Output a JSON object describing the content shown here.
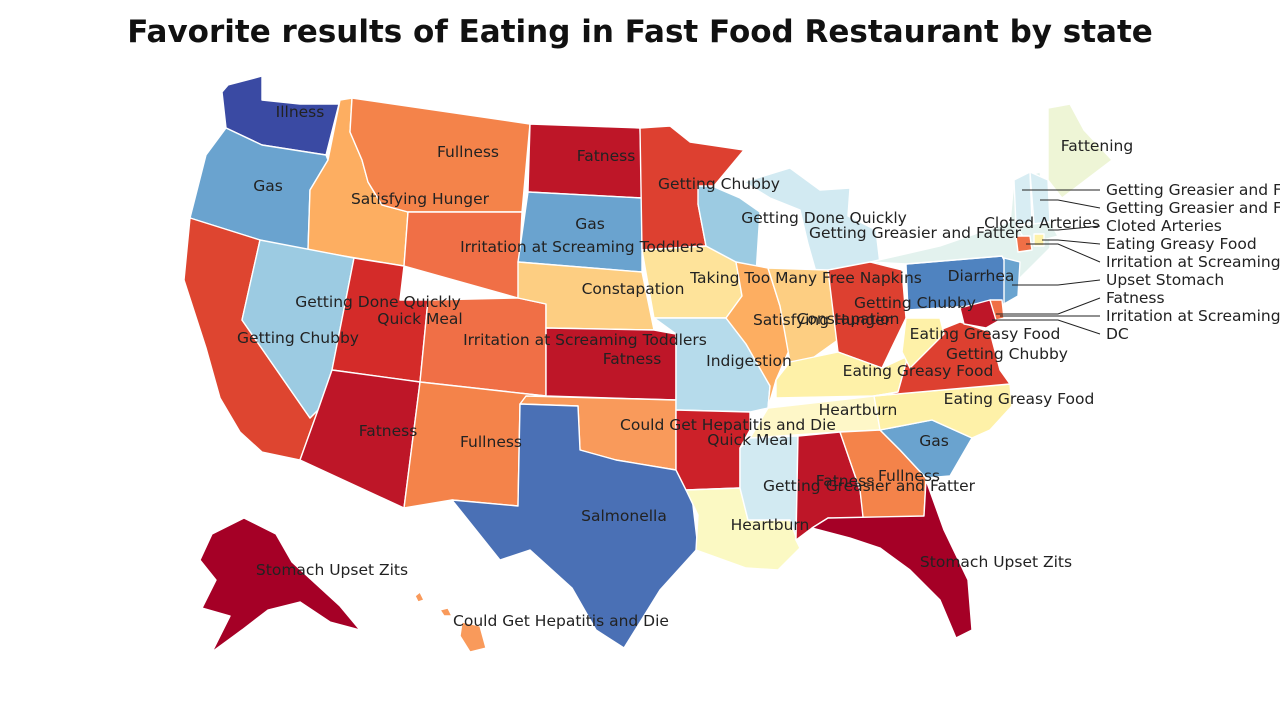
{
  "title": "Favorite results of Eating in Fast Food Restaurant by state",
  "palette": {
    "dark_red": "#a50026",
    "red": "#be1628",
    "orange_red": "#d73027",
    "orange": "#f46d43",
    "light_orange": "#fdae61",
    "peach": "#fdd085",
    "yellow": "#fee090",
    "pale_yellow": "#ffffbf",
    "pale_green": "#f0f7d8",
    "pale_cyan": "#e0f3f8",
    "light_blue": "#abd9e9",
    "sky_blue": "#74add1",
    "blue": "#4575b4",
    "navy": "#313695"
  },
  "states": {
    "WA": {
      "label": "Illness",
      "color": "#3a4aa3"
    },
    "OR": {
      "label": "Gas",
      "color": "#6aa3cf"
    },
    "CA": {
      "label": "",
      "color": "#de4530"
    },
    "ID": {
      "label": "Satisfying Hunger",
      "color": "#fdae61"
    },
    "NV": {
      "label": "Getting Chubby",
      "color": "#9ccbe2"
    },
    "MT": {
      "label": "Fullness",
      "color": "#f4834a"
    },
    "WY": {
      "label": "Irritation at Screaming Toddlers",
      "color": "#f06f46"
    },
    "UT": {
      "label": "Getting Done Quickly",
      "color": "#d42b29"
    },
    "UT2": {
      "label": "Quick Meal",
      "color": "#d42b29"
    },
    "AZ": {
      "label": "Fatness",
      "color": "#be1628"
    },
    "CO": {
      "label": "Irritation at Screaming Toddlers",
      "color": "#f06f46"
    },
    "NM": {
      "label": "Fullness",
      "color": "#f4834a"
    },
    "ND": {
      "label": "Fatness",
      "color": "#be1628"
    },
    "SD": {
      "label": "Gas",
      "color": "#6aa3cf"
    },
    "NE": {
      "label": "Constapation",
      "color": "#fdce82"
    },
    "KS": {
      "label": "Fatness",
      "color": "#be1628"
    },
    "OK": {
      "label": "Could Get Hepatitis and Die",
      "color": "#f99a5b"
    },
    "TX": {
      "label": "Salmonella",
      "color": "#4a70b5"
    },
    "MN": {
      "label": "Getting Chubby",
      "color": "#dd4030"
    },
    "IA": {
      "label": "Taking Too Many Free Napkins",
      "color": "#fee39a"
    },
    "MO": {
      "label": "Indigestion",
      "color": "#b6dbeb"
    },
    "AR": {
      "label": "Quick Meal",
      "color": "#cc2129"
    },
    "LA": {
      "label": "Heartburn",
      "color": "#fbf9c3"
    },
    "WI": {
      "label": "Getting Done Quickly",
      "color": "#9ccbe2"
    },
    "IL": {
      "label": "Satisfying Hunger",
      "color": "#fdae61"
    },
    "MI": {
      "label": "Getting Greasier and Fatter",
      "color": "#d2eaf2"
    },
    "IN": {
      "label": "Constapation",
      "color": "#fdce82"
    },
    "OH": {
      "label": "Getting Chubby",
      "color": "#dd4030"
    },
    "KY": {
      "label": "Eating Greasy Food",
      "color": "#fef1a8"
    },
    "TN": {
      "label": "Heartburn",
      "color": "#fef7c8"
    },
    "MS": {
      "label": "Getting Greasier and Fatter",
      "color": "#d2eaf2"
    },
    "AL": {
      "label": "Fatness",
      "color": "#be1628"
    },
    "GA": {
      "label": "Fullness",
      "color": "#f4834a"
    },
    "FL": {
      "label": "Stomach Upset Zits",
      "color": "#a50026"
    },
    "SC": {
      "label": "Gas",
      "color": "#6aa3cf"
    },
    "NC": {
      "label": "Eating Greasy Food",
      "color": "#fef1a8"
    },
    "VA": {
      "label": "Getting Chubby",
      "color": "#dd4030"
    },
    "WV": {
      "label": "Eating Greasy Food",
      "color": "#fef1a8"
    },
    "PA": {
      "label": "Diarrhea",
      "color": "#4f83c0"
    },
    "NY": {
      "label": "Cloted Arteries",
      "color": "#e3f2ee"
    },
    "ME": {
      "label": "Fattening",
      "color": "#eef5d6"
    },
    "AK": {
      "label": "Stomach Upset Zits",
      "color": "#a50026"
    },
    "HI": {
      "label": "Could Get Hepatitis and Die",
      "color": "#f99a5b"
    }
  },
  "callouts": [
    {
      "label": "Getting Greasier and F",
      "color": "#d8edf3"
    },
    {
      "label": "Getting Greasier and F",
      "color": "#d8edf3"
    },
    {
      "label": "Cloted Arteries",
      "color": "#e3f2ee"
    },
    {
      "label": "Eating Greasy Food",
      "color": "#fef1a8"
    },
    {
      "label": "Irritation at Screaming",
      "color": "#f06f46"
    },
    {
      "label": "Upset Stomach",
      "color": "#6aa3cf"
    },
    {
      "label": "Fatness",
      "color": "#be1628"
    },
    {
      "label": "Irritation at Screaming",
      "color": "#f06f46"
    },
    {
      "label": "DC",
      "color": "#be1628"
    }
  ]
}
